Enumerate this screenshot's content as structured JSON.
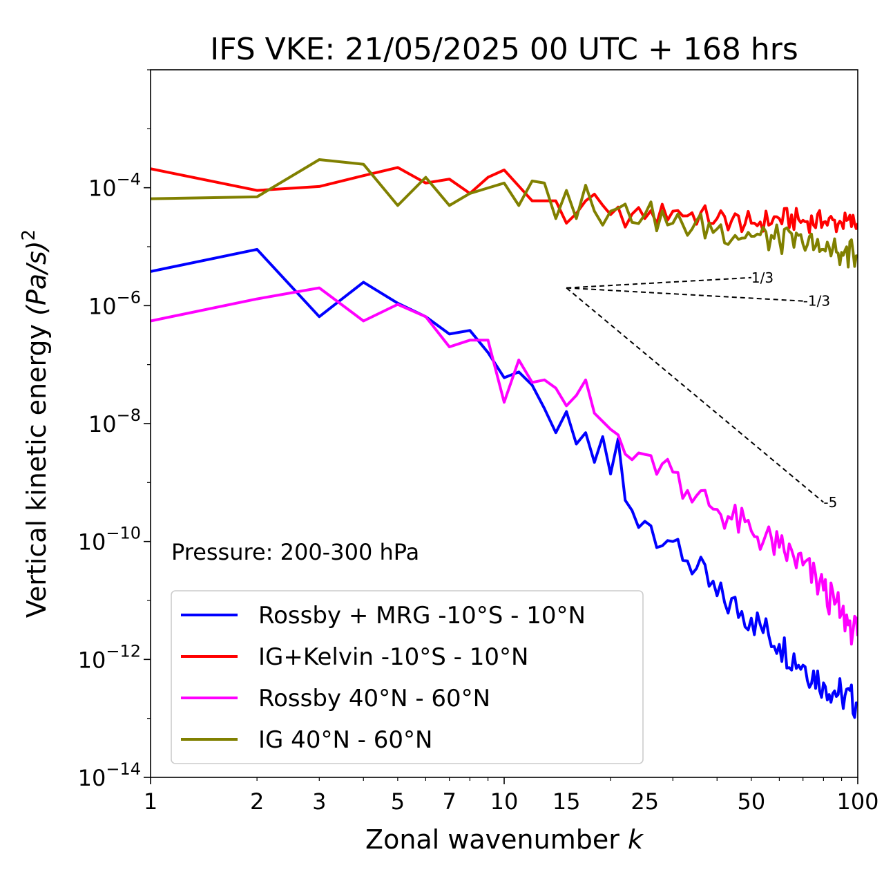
{
  "chart_data": {
    "type": "line",
    "title": "IFS VKE: 21/05/2025 00 UTC + 168 hrs",
    "xlabel": "Zonal wavenumber",
    "xlabel_var": "k",
    "ylabel": "Vertical kinetic energy",
    "ylabel_unit": "(Pa/s)",
    "ylabel_exp": "2",
    "x_scale": "log",
    "y_scale": "log",
    "xlim": [
      1,
      100
    ],
    "ylim": [
      1e-14,
      0.01
    ],
    "x_ticks": [
      1,
      2,
      3,
      5,
      7,
      10,
      15,
      25,
      50,
      100
    ],
    "x_tick_labels": [
      "1",
      "2",
      "3",
      "5",
      "7",
      "10",
      "15",
      "25",
      "50",
      "100"
    ],
    "y_ticks": [
      -14,
      -12,
      -10,
      -8,
      -6,
      -4
    ],
    "y_tick_base": "10",
    "y_tick_exps": [
      "−14",
      "−12",
      "−10",
      "−8",
      "−6",
      "−4"
    ],
    "grid": false,
    "legend_position": "lower-left",
    "annotation": "Pressure: 200-300 hPa",
    "reference_slopes": [
      {
        "label": "1/3",
        "slope": 0.3333,
        "x0": 15,
        "y0": 2e-06,
        "x1": 50
      },
      {
        "label": "-1/3",
        "slope": -0.3333,
        "x0": 15,
        "y0": 2e-06,
        "x1": 70
      },
      {
        "label": "-5",
        "slope": -5,
        "x0": 15,
        "y0": 2e-06,
        "x1": 80
      }
    ],
    "series": [
      {
        "name": "Rossby + MRG -10°S - 10°N",
        "color": "#0000ff",
        "anchors": [
          [
            1,
            3.8e-06
          ],
          [
            2,
            9e-06
          ],
          [
            3,
            6.5e-07
          ],
          [
            4,
            2.5e-06
          ],
          [
            5,
            1.1e-06
          ],
          [
            6,
            6.5e-07
          ],
          [
            7,
            3.3e-07
          ],
          [
            8,
            3.8e-07
          ],
          [
            9,
            1.6e-07
          ],
          [
            10,
            6e-08
          ],
          [
            11,
            7.5e-08
          ],
          [
            12,
            4.5e-08
          ],
          [
            13,
            1.8e-08
          ],
          [
            14,
            7e-09
          ],
          [
            15,
            1.6e-08
          ],
          [
            16,
            4.5e-09
          ],
          [
            17,
            7e-09
          ],
          [
            18,
            2.2e-09
          ],
          [
            19,
            6e-09
          ],
          [
            20,
            1.4e-09
          ],
          [
            21,
            5.5e-09
          ],
          [
            22,
            5e-10
          ],
          [
            25,
            2.2e-10
          ],
          [
            30,
            1e-10
          ],
          [
            35,
            3.5e-11
          ],
          [
            40,
            1.2e-11
          ],
          [
            50,
            5e-12
          ],
          [
            60,
            1.8e-12
          ],
          [
            70,
            8e-13
          ],
          [
            80,
            4e-13
          ],
          [
            90,
            2.5e-13
          ],
          [
            100,
            1.8e-13
          ]
        ],
        "jitter": 0.3,
        "jitter_from": 22
      },
      {
        "name": "IG+Kelvin -10°S - 10°N",
        "color": "#ff0000",
        "anchors": [
          [
            1,
            0.00021
          ],
          [
            2,
            9e-05
          ],
          [
            3,
            0.000105
          ],
          [
            4,
            0.00016
          ],
          [
            5,
            0.00022
          ],
          [
            6,
            0.00012
          ],
          [
            7,
            0.00014
          ],
          [
            8,
            8e-05
          ],
          [
            9,
            0.00015
          ],
          [
            10,
            0.0002
          ],
          [
            12,
            6e-05
          ],
          [
            14,
            6e-05
          ],
          [
            15,
            2.5e-05
          ],
          [
            17,
            6e-05
          ],
          [
            20,
            3.5e-05
          ],
          [
            25,
            3e-05
          ],
          [
            30,
            4e-05
          ],
          [
            40,
            3e-05
          ],
          [
            50,
            2.5e-05
          ],
          [
            60,
            3e-05
          ],
          [
            70,
            2.8e-05
          ],
          [
            80,
            2.6e-05
          ],
          [
            90,
            2.5e-05
          ],
          [
            100,
            2.5e-05
          ]
        ],
        "jitter": 0.2,
        "jitter_from": 15
      },
      {
        "name": "Rossby 40°N - 60°N",
        "color": "#ff00ff",
        "anchors": [
          [
            1,
            5.5e-07
          ],
          [
            2,
            1.3e-06
          ],
          [
            3,
            2e-06
          ],
          [
            4,
            5.5e-07
          ],
          [
            5,
            1.05e-06
          ],
          [
            6,
            6.5e-07
          ],
          [
            7,
            2e-07
          ],
          [
            8,
            2.6e-07
          ],
          [
            9,
            2.6e-07
          ],
          [
            10,
            2.3e-08
          ],
          [
            11,
            1.2e-07
          ],
          [
            12,
            5e-08
          ],
          [
            13,
            5.5e-08
          ],
          [
            14,
            4e-08
          ],
          [
            15,
            2e-08
          ],
          [
            16,
            3e-08
          ],
          [
            17,
            5.5e-08
          ],
          [
            18,
            1.5e-08
          ],
          [
            20,
            8e-09
          ],
          [
            25,
            3e-09
          ],
          [
            30,
            1.5e-09
          ],
          [
            35,
            6e-10
          ],
          [
            40,
            3.5e-10
          ],
          [
            50,
            1.5e-10
          ],
          [
            60,
            8e-11
          ],
          [
            70,
            4e-11
          ],
          [
            80,
            1.5e-11
          ],
          [
            90,
            6e-12
          ],
          [
            100,
            2.5e-12
          ]
        ],
        "jitter": 0.3,
        "jitter_from": 18
      },
      {
        "name": "IG 40°N - 60°N",
        "color": "#808000",
        "anchors": [
          [
            1,
            6.5e-05
          ],
          [
            2,
            7e-05
          ],
          [
            3,
            0.0003
          ],
          [
            4,
            0.00025
          ],
          [
            5,
            5e-05
          ],
          [
            6,
            0.00015
          ],
          [
            7,
            5e-05
          ],
          [
            8,
            8e-05
          ],
          [
            10,
            0.00012
          ],
          [
            11,
            5e-05
          ],
          [
            12,
            0.00013
          ],
          [
            13,
            0.00012
          ],
          [
            14,
            3e-05
          ],
          [
            15,
            9e-05
          ],
          [
            16,
            3e-05
          ],
          [
            17,
            0.00011
          ],
          [
            18,
            4e-05
          ],
          [
            20,
            4e-05
          ],
          [
            25,
            3.5e-05
          ],
          [
            30,
            2.5e-05
          ],
          [
            40,
            2e-05
          ],
          [
            50,
            1.5e-05
          ],
          [
            60,
            1.3e-05
          ],
          [
            70,
            1.1e-05
          ],
          [
            80,
            9e-06
          ],
          [
            90,
            8e-06
          ],
          [
            100,
            7e-06
          ]
        ],
        "jitter": 0.25,
        "jitter_from": 18
      }
    ]
  }
}
